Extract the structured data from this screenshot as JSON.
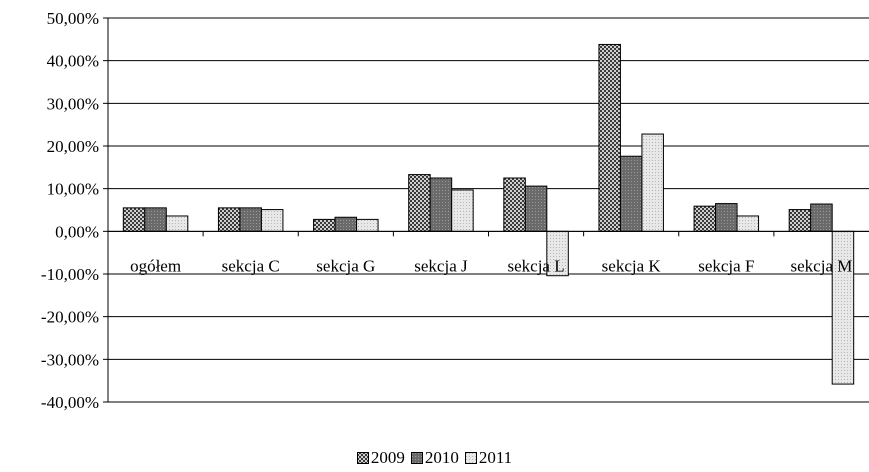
{
  "chart_data": {
    "type": "bar",
    "title": "",
    "xlabel": "",
    "ylabel": "",
    "categories": [
      "ogółem",
      "sekcja C",
      "sekcja G",
      "sekcja J",
      "sekcja L",
      "sekcja K",
      "sekcja F",
      "sekcja M"
    ],
    "series": [
      {
        "name": "2009",
        "values": [
          5.5,
          5.5,
          2.8,
          13.3,
          12.5,
          43.8,
          5.9,
          5.1
        ],
        "pattern": "dark-check"
      },
      {
        "name": "2010",
        "values": [
          5.5,
          5.5,
          3.3,
          12.5,
          10.6,
          17.6,
          6.5,
          6.4
        ],
        "pattern": "dark-dots"
      },
      {
        "name": "2011",
        "values": [
          3.6,
          5.1,
          2.8,
          9.7,
          -10.4,
          22.8,
          3.6,
          -35.8
        ],
        "pattern": "light-dots"
      }
    ],
    "ylim": [
      -40,
      50
    ],
    "yticks": [
      50,
      40,
      30,
      20,
      10,
      0,
      -10,
      -20,
      -30,
      -40
    ],
    "ytick_labels": [
      "50,00%",
      "40,00%",
      "30,00%",
      "20,00%",
      "10,00%",
      "0,00%",
      "-10,00%",
      "-20,00%",
      "-30,00%",
      "-40,00%"
    ],
    "grid": true,
    "legend_position": "bottom"
  }
}
